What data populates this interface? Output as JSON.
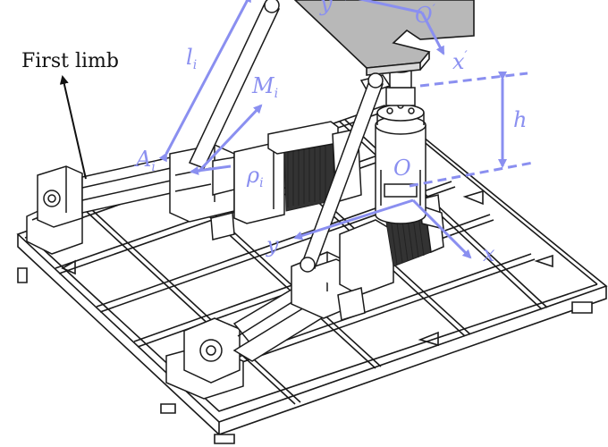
{
  "labels": {
    "first_limb": "First limb",
    "l": "l",
    "l_sub": "i",
    "m": "M",
    "m_sub": "i",
    "a": "A",
    "a_sub": "i",
    "rho": "ρ",
    "rho_sub": "i",
    "h": "h",
    "o": "O",
    "o_prime": "O",
    "o_prime_mark": "′",
    "y_top": "y",
    "x_top": "x",
    "x_top_mark": "′",
    "y_bottom": "y",
    "x_bottom": "x"
  },
  "colors": {
    "annotation": "#8a8ff0",
    "line": "#1a1a1a",
    "platform": "#b8b8b8"
  }
}
